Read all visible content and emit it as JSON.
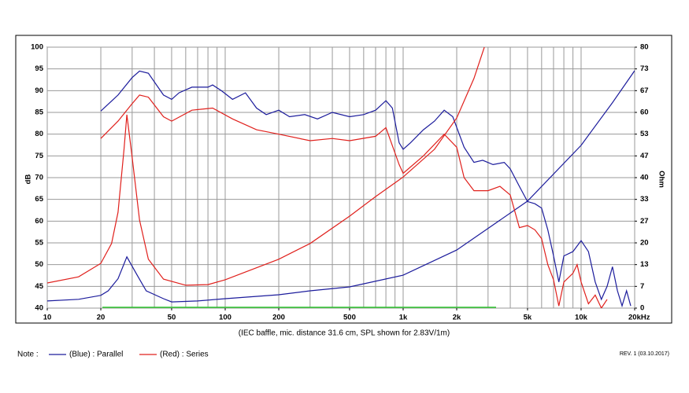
{
  "chart_data": {
    "type": "line",
    "log_x": true,
    "grid": true,
    "xlim": [
      10,
      20000
    ],
    "xgrid": [
      10,
      20,
      30,
      40,
      50,
      60,
      70,
      80,
      90,
      100,
      200,
      300,
      400,
      500,
      600,
      700,
      800,
      900,
      1000,
      2000,
      3000,
      4000,
      5000,
      6000,
      7000,
      8000,
      9000,
      10000,
      20000
    ],
    "xticks": [
      10,
      20,
      50,
      100,
      200,
      500,
      {
        "value": 1000,
        "label": "1k"
      },
      {
        "value": 2000,
        "label": "2k"
      },
      {
        "value": 5000,
        "label": "5k"
      },
      {
        "value": 10000,
        "label": "10k"
      },
      {
        "value": 20000,
        "label": "20kHz"
      }
    ],
    "ylim": [
      40,
      100
    ],
    "yticks": [
      40,
      45,
      50,
      55,
      60,
      65,
      70,
      75,
      80,
      85,
      90,
      95,
      100
    ],
    "y2lim": [
      0,
      80
    ],
    "y2ticks": [
      0,
      {
        "value": 6.667,
        "label": "7"
      },
      {
        "value": 13.333,
        "label": "13"
      },
      20,
      {
        "value": 26.667,
        "label": "27"
      },
      {
        "value": 33.333,
        "label": "33"
      },
      40,
      {
        "value": 46.667,
        "label": "47"
      },
      {
        "value": 53.333,
        "label": "53"
      },
      60,
      {
        "value": 66.667,
        "label": "67"
      },
      {
        "value": 73.333,
        "label": "73"
      },
      80
    ],
    "ylabel": "dB",
    "y2label": "Ohm",
    "caption": "(IEC baffle, mic. distance 31.6 cm, SPL shown for 2.83V/1m)",
    "legend_title": "Note :",
    "revision": "REV. 1 (03.10.2017)",
    "series": [
      {
        "name": "(Blue) : Parallel",
        "color": "#1c1c9c",
        "spl": {
          "x": [
            20,
            25,
            30,
            33,
            37,
            45,
            50,
            55,
            65,
            80,
            85,
            95,
            110,
            130,
            150,
            170,
            200,
            230,
            280,
            330,
            400,
            500,
            600,
            700,
            800,
            870,
            950,
            1000,
            1100,
            1300,
            1500,
            1700,
            1900,
            2200,
            2500,
            2800,
            3200,
            3700,
            4000,
            4500,
            5000,
            5500,
            6000,
            6500,
            7000,
            7500,
            8000,
            9000,
            10000,
            11000,
            12000,
            13000,
            14000,
            15000,
            16000,
            17000,
            18000,
            19000
          ],
          "values": [
            85.3,
            89,
            93,
            94.5,
            94,
            89,
            88,
            89.5,
            90.8,
            90.8,
            91.3,
            90,
            88,
            89.5,
            86,
            84.5,
            85.5,
            84,
            84.5,
            83.5,
            85,
            84,
            84.5,
            85.5,
            87.7,
            86,
            78,
            76.5,
            78,
            81,
            83,
            85.5,
            84,
            77,
            73.5,
            74,
            73,
            73.5,
            72,
            68,
            64.5,
            64,
            63,
            58,
            52,
            46,
            52,
            53,
            55.5,
            53,
            46,
            42,
            45,
            49.5,
            44,
            40.5,
            44,
            40.5
          ]
        },
        "impedance": {
          "x": [
            10,
            15,
            20,
            22,
            25,
            28,
            32,
            36,
            45,
            50,
            70,
            100,
            200,
            300,
            500,
            1000,
            2000,
            5000,
            10000,
            15000,
            20000
          ],
          "values": [
            2.2,
            2.7,
            3.9,
            5.3,
            9,
            15.7,
            10.1,
            5.3,
            2.9,
            1.9,
            2.2,
            2.9,
            4.1,
            5.3,
            6.5,
            10.1,
            17.8,
            32.8,
            49.9,
            63,
            72.8
          ]
        }
      },
      {
        "name": "(Red) : Series",
        "color": "#e0201c",
        "spl": {
          "x": [
            20,
            25,
            30,
            33,
            37,
            45,
            50,
            65,
            85,
            110,
            150,
            200,
            300,
            400,
            500,
            700,
            800,
            950,
            1000,
            1300,
            1700,
            2000,
            2200,
            2500,
            3000,
            3500,
            4000,
            4500,
            5000,
            5500,
            6000,
            6500,
            7000,
            7500,
            8000,
            9000,
            9500,
            10000,
            11000,
            12000,
            13000,
            14000
          ],
          "values": [
            79,
            83,
            87,
            89,
            88.5,
            84,
            83,
            85.5,
            86,
            83.5,
            81,
            80,
            78.5,
            79,
            78.5,
            79.5,
            81.5,
            73,
            71,
            75,
            80,
            77,
            70,
            67,
            67,
            68,
            66,
            58.5,
            59,
            58,
            56,
            50,
            46.5,
            40.5,
            46,
            48,
            50,
            46,
            41,
            43,
            40,
            42
          ]
        },
        "impedance": {
          "x": [
            10,
            15,
            20,
            23,
            25,
            27,
            28,
            30,
            33,
            37,
            45,
            60,
            80,
            100,
            200,
            300,
            500,
            700,
            1000,
            1500,
            2000,
            2500,
            2860
          ],
          "values": [
            7.7,
            9.6,
            13.7,
            19.8,
            29.4,
            48.7,
            59.3,
            46.3,
            27,
            15,
            8.9,
            7,
            7.2,
            8.7,
            15,
            19.8,
            28.2,
            34.2,
            40.2,
            48.7,
            58.3,
            70.4,
            80
          ]
        }
      }
    ]
  }
}
